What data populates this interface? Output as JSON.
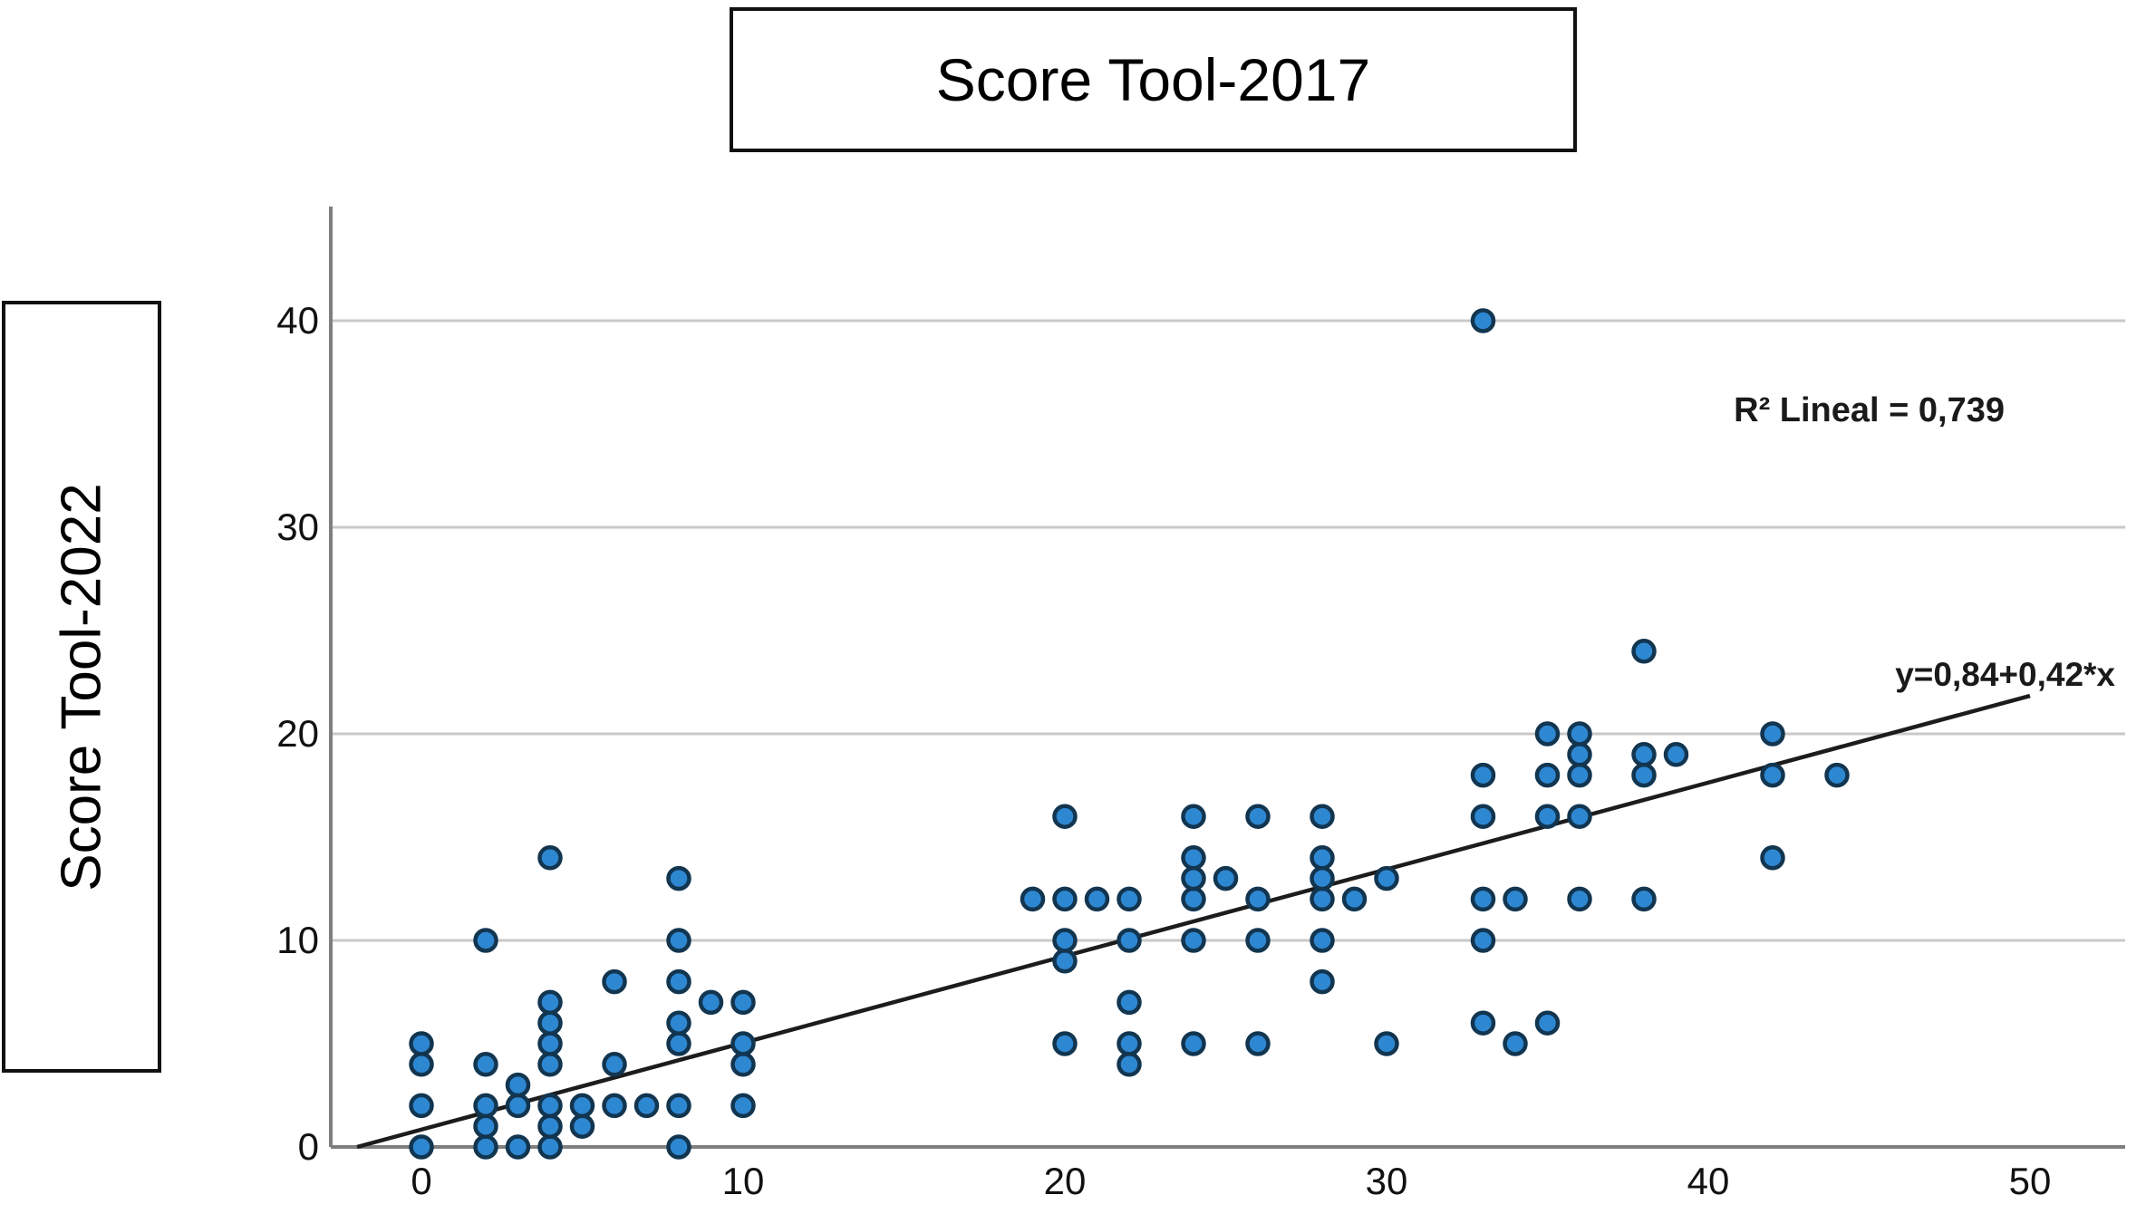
{
  "title_box": {
    "label": "Score Tool-2017"
  },
  "ylabel_box": {
    "label": "Score Tool-2022"
  },
  "chart_data": {
    "type": "scatter",
    "title": "Score Tool-2017",
    "xlabel": "Score Tool-2017",
    "ylabel": "Score Tool-2022",
    "x_ticks": [
      0,
      10,
      20,
      30,
      40,
      50
    ],
    "y_ticks": [
      0,
      10,
      20,
      30,
      40
    ],
    "xlim": [
      -2.8,
      53
    ],
    "ylim": [
      0,
      45.5
    ],
    "grid": "horizontal",
    "legend": "none",
    "marker_color": "#2E87D1",
    "marker_edge_color": "#123550",
    "gridline_color": "#c9c9c9",
    "axis_color": "#7f7f7f",
    "regression": {
      "slope": 0.42,
      "intercept": 0.84,
      "r2": 0.739,
      "equation_label": "y=0,84+0,42*x",
      "r2_label": "R² Lineal = 0,739",
      "line_color": "#1c1c1c",
      "x_start": -2.0,
      "x_end": 50.0
    },
    "points": [
      [
        0,
        0
      ],
      [
        2,
        0
      ],
      [
        3,
        0
      ],
      [
        4,
        0
      ],
      [
        8,
        0
      ],
      [
        2,
        1
      ],
      [
        4,
        1
      ],
      [
        5,
        1
      ],
      [
        0,
        2
      ],
      [
        2,
        2
      ],
      [
        3,
        2
      ],
      [
        4,
        2
      ],
      [
        5,
        2
      ],
      [
        6,
        2
      ],
      [
        7,
        2
      ],
      [
        8,
        2
      ],
      [
        10,
        2
      ],
      [
        3,
        3
      ],
      [
        0,
        4
      ],
      [
        2,
        4
      ],
      [
        4,
        4
      ],
      [
        6,
        4
      ],
      [
        10,
        4
      ],
      [
        0,
        5
      ],
      [
        4,
        5
      ],
      [
        8,
        5
      ],
      [
        10,
        5
      ],
      [
        4,
        6
      ],
      [
        8,
        6
      ],
      [
        4,
        7
      ],
      [
        9,
        7
      ],
      [
        10,
        7
      ],
      [
        6,
        8
      ],
      [
        8,
        8
      ],
      [
        2,
        10
      ],
      [
        8,
        10
      ],
      [
        8,
        13
      ],
      [
        4,
        14
      ],
      [
        19,
        12
      ],
      [
        20,
        5
      ],
      [
        20,
        9
      ],
      [
        20,
        10
      ],
      [
        20,
        12
      ],
      [
        20,
        16
      ],
      [
        21,
        12
      ],
      [
        22,
        4
      ],
      [
        22,
        5
      ],
      [
        22,
        7
      ],
      [
        22,
        10
      ],
      [
        22,
        12
      ],
      [
        24,
        5
      ],
      [
        24,
        10
      ],
      [
        24,
        12
      ],
      [
        24,
        13
      ],
      [
        24,
        14
      ],
      [
        24,
        16
      ],
      [
        25,
        13
      ],
      [
        26,
        5
      ],
      [
        26,
        10
      ],
      [
        26,
        12
      ],
      [
        26,
        16
      ],
      [
        28,
        8
      ],
      [
        28,
        10
      ],
      [
        28,
        12
      ],
      [
        28,
        13
      ],
      [
        28,
        14
      ],
      [
        28,
        16
      ],
      [
        29,
        12
      ],
      [
        30,
        5
      ],
      [
        30,
        13
      ],
      [
        33,
        6
      ],
      [
        33,
        10
      ],
      [
        33,
        12
      ],
      [
        33,
        16
      ],
      [
        33,
        18
      ],
      [
        33,
        40
      ],
      [
        34,
        5
      ],
      [
        34,
        12
      ],
      [
        35,
        6
      ],
      [
        35,
        16
      ],
      [
        35,
        18
      ],
      [
        35,
        20
      ],
      [
        36,
        12
      ],
      [
        36,
        16
      ],
      [
        36,
        18
      ],
      [
        36,
        19
      ],
      [
        36,
        20
      ],
      [
        38,
        12
      ],
      [
        38,
        18
      ],
      [
        38,
        19
      ],
      [
        38,
        24
      ],
      [
        39,
        19
      ],
      [
        42,
        14
      ],
      [
        42,
        18
      ],
      [
        42,
        20
      ],
      [
        44,
        18
      ]
    ]
  }
}
